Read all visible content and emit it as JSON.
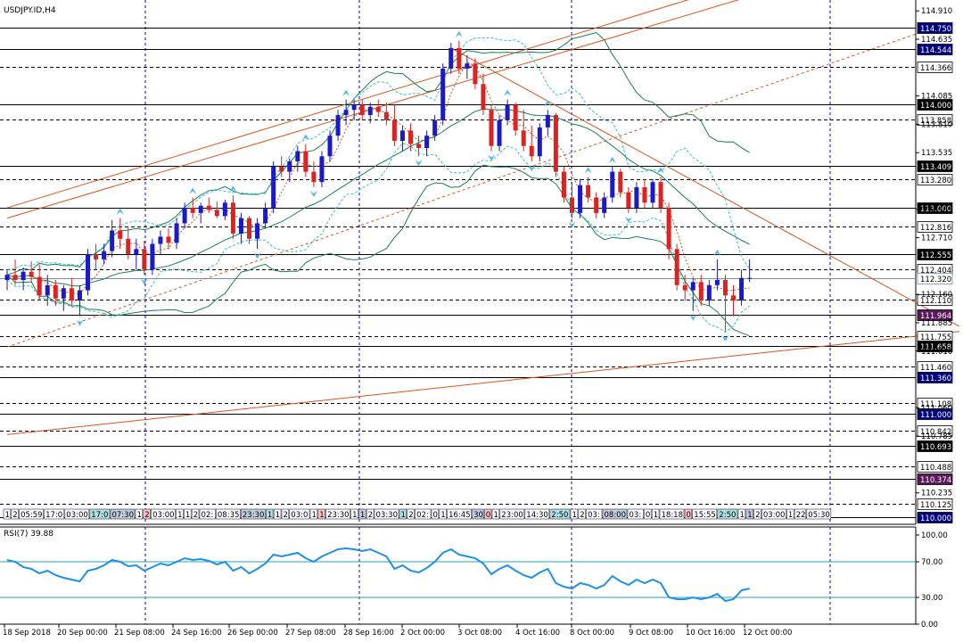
{
  "chart_data": {
    "type": "candlestick",
    "title": "USDJPY.ID,H4",
    "y_range": [
      109.93,
      114.99
    ],
    "price_ticks": [
      114.91,
      114.635,
      114.085,
      113.81,
      113.535,
      112.985,
      112.71,
      112.16,
      111.885,
      111.61,
      111.06,
      110.785,
      110.235
    ],
    "x_tick_labels": [
      "18 Sep 2018",
      "20 Sep 00:00",
      "21 Sep 08:00",
      "24 Sep 16:00",
      "26 Sep 00:00",
      "27 Sep 08:00",
      "28 Sep 16:00",
      "2 Oct 00:00",
      "3 Oct 08:00",
      "4 Oct 16:00",
      "8 Oct 00:00",
      "9 Oct 08:00",
      "10 Oct 16:00",
      "12 Oct 00:00"
    ],
    "horizontal_levels": [
      {
        "price": 114.75,
        "label": "114.750",
        "style": "solid",
        "color": "#000080"
      },
      {
        "price": 114.544,
        "label": "114.544",
        "style": "solid",
        "color": "#000080"
      },
      {
        "price": 114.366,
        "label": "114.366",
        "style": "dashed",
        "color": "#000000"
      },
      {
        "price": 114.0,
        "label": "114.000",
        "style": "solid",
        "color": "#000000"
      },
      {
        "price": 113.858,
        "label": "113.858",
        "style": "dashed",
        "color": "#000000"
      },
      {
        "price": 113.409,
        "label": "113.409",
        "style": "solid",
        "color": "#000000"
      },
      {
        "price": 113.28,
        "label": "113.280",
        "style": "dashed",
        "color": "#000080"
      },
      {
        "price": 113.0,
        "label": "113.000",
        "style": "solid",
        "color": "#000000"
      },
      {
        "price": 112.816,
        "label": "112.816",
        "style": "dashed",
        "color": "#000000"
      },
      {
        "price": 112.555,
        "label": "112.555",
        "style": "solid",
        "color": "#000000"
      },
      {
        "price": 112.404,
        "label": "112.404",
        "style": "dashed",
        "color": "#000000"
      },
      {
        "price": 112.32,
        "label": "112.320",
        "style": "solid",
        "color": "#7f8c99"
      },
      {
        "price": 112.11,
        "label": "112.110",
        "style": "dashed",
        "color": "#000000"
      },
      {
        "price": 111.964,
        "label": "111.964",
        "style": "solid",
        "color": "#5a1a5a"
      },
      {
        "price": 111.755,
        "label": "111.755",
        "style": "dashed",
        "color": "#000080"
      },
      {
        "price": 111.658,
        "label": "111.658",
        "style": "solid",
        "color": "#000000"
      },
      {
        "price": 111.46,
        "label": "111.460",
        "style": "dashed",
        "color": "#000080"
      },
      {
        "price": 111.36,
        "label": "111.360",
        "style": "solid",
        "color": "#000080"
      },
      {
        "price": 111.108,
        "label": "111.108",
        "style": "dashed",
        "color": "#000080"
      },
      {
        "price": 111.0,
        "label": "111.000",
        "style": "solid",
        "color": "#000080"
      },
      {
        "price": 110.842,
        "label": "110.842",
        "style": "dashed",
        "color": "#5a1a5a"
      },
      {
        "price": 110.693,
        "label": "110.693",
        "style": "solid",
        "color": "#000000"
      },
      {
        "price": 110.488,
        "label": "110.488",
        "style": "dashed",
        "color": "#000000"
      },
      {
        "price": 110.374,
        "label": "110.374",
        "style": "solid",
        "color": "#5a1a5a"
      },
      {
        "price": 110.125,
        "label": "110.125",
        "style": "dashed",
        "color": "#000080"
      },
      {
        "price": 110.0,
        "label": "110.000",
        "style": "solid",
        "color": "#000080"
      }
    ],
    "candles": [
      [
        112.3,
        112.4,
        112.2,
        112.35
      ],
      [
        112.35,
        112.5,
        112.25,
        112.3
      ],
      [
        112.3,
        112.42,
        112.2,
        112.38
      ],
      [
        112.38,
        112.48,
        112.28,
        112.33
      ],
      [
        112.33,
        112.45,
        112.1,
        112.15
      ],
      [
        112.15,
        112.35,
        112.05,
        112.25
      ],
      [
        112.25,
        112.3,
        112.05,
        112.12
      ],
      [
        112.12,
        112.25,
        112.0,
        112.22
      ],
      [
        112.22,
        112.32,
        112.05,
        112.1
      ],
      [
        112.1,
        112.25,
        111.95,
        112.2
      ],
      [
        112.2,
        112.6,
        112.15,
        112.55
      ],
      [
        112.55,
        112.65,
        112.4,
        112.5
      ],
      [
        112.5,
        112.65,
        112.45,
        112.58
      ],
      [
        112.58,
        112.88,
        112.52,
        112.78
      ],
      [
        112.78,
        112.9,
        112.6,
        112.7
      ],
      [
        112.7,
        112.82,
        112.5,
        112.55
      ],
      [
        112.55,
        112.7,
        112.4,
        112.6
      ],
      [
        112.6,
        112.68,
        112.35,
        112.4
      ],
      [
        112.4,
        112.7,
        112.35,
        112.65
      ],
      [
        112.65,
        112.78,
        112.55,
        112.72
      ],
      [
        112.72,
        112.8,
        112.6,
        112.66
      ],
      [
        112.66,
        112.9,
        112.6,
        112.85
      ],
      [
        112.85,
        113.05,
        112.8,
        113.0
      ],
      [
        113.0,
        113.1,
        112.9,
        112.95
      ],
      [
        112.95,
        113.05,
        112.85,
        113.02
      ],
      [
        113.02,
        113.1,
        112.95,
        112.98
      ],
      [
        112.98,
        113.06,
        112.9,
        112.92
      ],
      [
        112.92,
        113.08,
        112.88,
        113.05
      ],
      [
        113.05,
        113.12,
        112.7,
        112.75
      ],
      [
        112.75,
        112.95,
        112.65,
        112.9
      ],
      [
        112.9,
        112.92,
        112.65,
        112.7
      ],
      [
        112.7,
        112.9,
        112.6,
        112.85
      ],
      [
        112.85,
        113.05,
        112.8,
        113.0
      ],
      [
        113.0,
        113.45,
        112.95,
        113.4
      ],
      [
        113.4,
        113.5,
        113.3,
        113.35
      ],
      [
        113.35,
        113.48,
        113.25,
        113.45
      ],
      [
        113.45,
        113.6,
        113.35,
        113.55
      ],
      [
        113.55,
        113.62,
        113.3,
        113.35
      ],
      [
        113.35,
        113.45,
        113.2,
        113.25
      ],
      [
        113.25,
        113.55,
        113.2,
        113.5
      ],
      [
        113.5,
        113.75,
        113.45,
        113.7
      ],
      [
        113.7,
        113.95,
        113.65,
        113.9
      ],
      [
        113.9,
        114.05,
        113.8,
        113.95
      ],
      [
        113.95,
        114.05,
        113.85,
        114.0
      ],
      [
        114.0,
        114.05,
        113.85,
        113.9
      ],
      [
        113.9,
        114.02,
        113.82,
        113.98
      ],
      [
        113.98,
        114.05,
        113.88,
        113.93
      ],
      [
        113.93,
        114.02,
        113.8,
        113.85
      ],
      [
        113.85,
        114.0,
        113.6,
        113.65
      ],
      [
        113.65,
        113.8,
        113.55,
        113.75
      ],
      [
        113.75,
        113.82,
        113.55,
        113.62
      ],
      [
        113.62,
        113.7,
        113.5,
        113.58
      ],
      [
        113.58,
        113.75,
        113.5,
        113.7
      ],
      [
        113.7,
        113.9,
        113.65,
        113.85
      ],
      [
        113.85,
        114.4,
        113.8,
        114.35
      ],
      [
        114.35,
        114.6,
        114.3,
        114.55
      ],
      [
        114.55,
        114.62,
        114.3,
        114.35
      ],
      [
        114.35,
        114.48,
        114.25,
        114.4
      ],
      [
        114.4,
        114.45,
        114.15,
        114.2
      ],
      [
        114.2,
        114.3,
        113.9,
        113.95
      ],
      [
        113.95,
        114.0,
        113.55,
        113.6
      ],
      [
        113.6,
        113.9,
        113.55,
        113.85
      ],
      [
        113.85,
        114.05,
        113.8,
        114.0
      ],
      [
        114.0,
        114.02,
        113.7,
        113.75
      ],
      [
        113.75,
        113.95,
        113.55,
        113.6
      ],
      [
        113.6,
        113.8,
        113.45,
        113.5
      ],
      [
        113.5,
        113.82,
        113.45,
        113.78
      ],
      [
        113.78,
        113.95,
        113.7,
        113.9
      ],
      [
        113.9,
        113.92,
        113.3,
        113.35
      ],
      [
        113.35,
        113.4,
        113.05,
        113.1
      ],
      [
        113.1,
        113.25,
        112.9,
        112.95
      ],
      [
        112.95,
        113.28,
        112.9,
        113.22
      ],
      [
        113.22,
        113.3,
        113.05,
        113.1
      ],
      [
        113.1,
        113.15,
        112.9,
        112.95
      ],
      [
        112.95,
        113.15,
        112.9,
        113.1
      ],
      [
        113.1,
        113.4,
        113.05,
        113.35
      ],
      [
        113.35,
        113.38,
        113.1,
        113.15
      ],
      [
        113.15,
        113.2,
        112.95,
        113.0
      ],
      [
        113.0,
        113.25,
        112.95,
        113.2
      ],
      [
        113.2,
        113.28,
        113.0,
        113.05
      ],
      [
        113.05,
        113.28,
        113.0,
        113.25
      ],
      [
        113.25,
        113.3,
        112.95,
        113.0
      ],
      [
        113.0,
        113.05,
        112.5,
        112.6
      ],
      [
        112.6,
        112.65,
        112.2,
        112.25
      ],
      [
        112.25,
        112.35,
        112.1,
        112.2
      ],
      [
        112.2,
        112.32,
        112.0,
        112.28
      ],
      [
        112.28,
        112.35,
        112.05,
        112.1
      ],
      [
        112.1,
        112.3,
        112.05,
        112.25
      ],
      [
        112.25,
        112.5,
        112.2,
        112.3
      ],
      [
        112.3,
        112.35,
        111.8,
        112.15
      ],
      [
        112.15,
        112.25,
        111.95,
        112.1
      ],
      [
        112.1,
        112.4,
        112.05,
        112.32
      ],
      [
        112.32,
        112.5,
        112.28,
        112.32
      ]
    ],
    "channels": [
      {
        "x": [
          0,
          92
        ],
        "y": [
          113.0,
          115.2
        ],
        "color": "#d9541e",
        "style": "solid"
      },
      {
        "x": [
          0,
          92
        ],
        "y": [
          112.9,
          115.05
        ],
        "color": "#d9541e",
        "style": "solid"
      },
      {
        "x": [
          0,
          115
        ],
        "y": [
          111.65,
          114.75
        ],
        "color": "#d9541e",
        "style": "dashed"
      },
      {
        "x": [
          55,
          118
        ],
        "y": [
          114.55,
          111.85
        ],
        "color": "#d9541e",
        "style": "solid"
      },
      {
        "x": [
          0,
          118
        ],
        "y": [
          110.8,
          111.8
        ],
        "color": "#d9541e",
        "style": "solid"
      }
    ],
    "rsi": {
      "label": "RSI(7) 39.88",
      "period": 7,
      "levels": [
        30,
        70
      ],
      "ticks": [
        0,
        30,
        70,
        100
      ],
      "tick_labels": [
        "0.00",
        "30.00",
        "70.00",
        "100.00"
      ],
      "values": [
        72,
        70,
        64,
        62,
        57,
        60,
        55,
        52,
        50,
        48,
        60,
        62,
        66,
        72,
        70,
        65,
        66,
        60,
        64,
        68,
        66,
        70,
        74,
        72,
        73,
        71,
        67,
        70,
        60,
        64,
        57,
        62,
        68,
        78,
        76,
        78,
        80,
        74,
        70,
        76,
        80,
        84,
        85,
        84,
        82,
        84,
        80,
        76,
        62,
        66,
        60,
        58,
        63,
        70,
        80,
        84,
        78,
        76,
        74,
        68,
        56,
        62,
        66,
        60,
        55,
        52,
        58,
        62,
        46,
        42,
        40,
        46,
        44,
        40,
        44,
        54,
        48,
        44,
        50,
        46,
        50,
        46,
        30,
        28,
        28,
        30,
        28,
        30,
        34,
        26,
        28,
        38,
        39.88
      ]
    },
    "bottom_strip": {
      "labels": [
        "1",
        "2",
        "05:59",
        "17:0",
        "03:00",
        "17:0",
        "07:30",
        "1",
        "2",
        "03:00",
        "1",
        "1",
        "2",
        "02:",
        "08:35",
        "23:30",
        "1",
        "1",
        "2",
        "03:0",
        "1",
        "1",
        "23:30",
        "1",
        "1",
        "2",
        "03:30",
        "1",
        "2",
        "02:",
        "0",
        "1",
        "16:45",
        "30",
        "0",
        "1",
        "23:00",
        "14:30",
        "2:50",
        "1",
        "2",
        "03:",
        "08:00",
        "03:",
        "0",
        "1",
        "18:18",
        "0",
        "15:55",
        "2:50",
        "1",
        "1",
        "2",
        "03:00",
        "1",
        "22",
        "05:30"
      ],
      "note_colors": [
        "#c0ccdc",
        "#ffc0c0",
        "#b0e0e0"
      ]
    }
  }
}
